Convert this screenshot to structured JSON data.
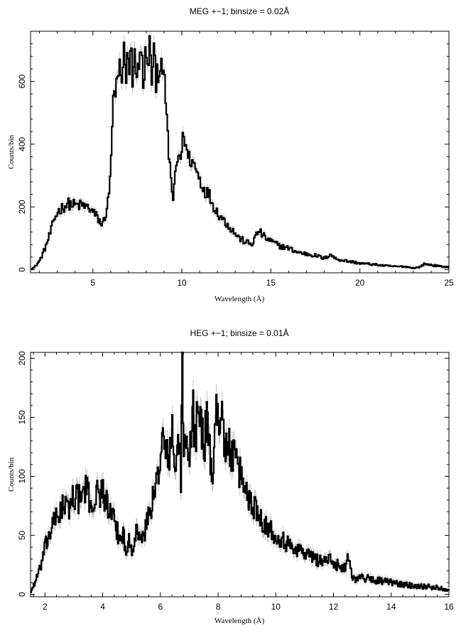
{
  "chart_data": [
    {
      "type": "line",
      "title": "MEG +−1; binsize = 0.02Å",
      "xlabel": "Wavelength (Å)",
      "ylabel": "Counts/bin",
      "xlim": [
        1.5,
        25
      ],
      "ylim": [
        -10,
        760
      ],
      "xticks": [
        5,
        10,
        15,
        20,
        25
      ],
      "yticks": [
        0,
        200,
        400,
        600
      ],
      "grid": false,
      "series": [
        {
          "x": [
            1.5,
            1.7,
            2.0,
            2.3,
            2.6,
            2.8,
            3.0,
            3.3,
            3.6,
            4.0,
            4.4,
            4.8,
            5.1,
            5.3,
            5.5,
            5.7,
            5.9,
            6.0,
            6.1,
            6.3,
            6.5,
            6.6,
            6.7,
            6.8,
            6.9,
            7.0,
            7.1,
            7.2,
            7.3,
            7.4,
            7.5,
            7.6,
            7.7,
            7.8,
            7.9,
            8.0,
            8.1,
            8.2,
            8.3,
            8.4,
            8.5,
            8.6,
            8.7,
            8.8,
            8.9,
            9.0,
            9.1,
            9.2,
            9.3,
            9.4,
            9.5,
            9.6,
            9.7,
            9.8,
            9.9,
            10.0,
            10.1,
            10.2,
            10.3,
            10.5,
            10.7,
            10.9,
            11.1,
            11.3,
            11.5,
            11.7,
            12.0,
            12.3,
            12.6,
            12.9,
            13.2,
            13.5,
            13.7,
            13.9,
            14.1,
            14.3,
            14.5,
            14.7,
            15.0,
            15.5,
            16.0,
            16.5,
            17.0,
            17.5,
            18.0,
            18.3,
            18.6,
            19.0,
            19.5,
            20.0,
            20.5,
            21.0,
            21.5,
            22.0,
            22.5,
            23.0,
            23.3,
            23.6,
            24.0,
            24.5,
            25.0
          ],
          "values": [
            2,
            8,
            30,
            70,
            120,
            160,
            185,
            200,
            210,
            205,
            205,
            195,
            175,
            160,
            140,
            180,
            240,
            380,
            520,
            580,
            640,
            560,
            720,
            600,
            680,
            650,
            700,
            620,
            700,
            580,
            690,
            640,
            720,
            560,
            700,
            630,
            680,
            720,
            590,
            690,
            600,
            650,
            630,
            700,
            560,
            640,
            480,
            400,
            330,
            260,
            220,
            300,
            340,
            370,
            360,
            400,
            440,
            390,
            360,
            350,
            330,
            300,
            270,
            250,
            240,
            210,
            180,
            160,
            140,
            120,
            100,
            90,
            85,
            80,
            105,
            125,
            110,
            100,
            90,
            75,
            68,
            55,
            50,
            45,
            35,
            50,
            35,
            30,
            25,
            20,
            18,
            15,
            12,
            10,
            10,
            5,
            8,
            18,
            15,
            10,
            8
          ]
        }
      ]
    },
    {
      "type": "line",
      "title": "HEG +−1; binsize = 0.01Å",
      "xlabel": "Wavelength (Å)",
      "ylabel": "Counts/bin",
      "xlim": [
        1.5,
        16
      ],
      "ylim": [
        -2,
        205
      ],
      "xticks": [
        2,
        4,
        6,
        8,
        10,
        12,
        14,
        16
      ],
      "yticks": [
        0,
        50,
        100,
        150,
        200
      ],
      "grid": false,
      "series": [
        {
          "x": [
            1.5,
            1.6,
            1.8,
            2.0,
            2.2,
            2.4,
            2.6,
            2.8,
            3.0,
            3.2,
            3.4,
            3.6,
            3.8,
            4.0,
            4.2,
            4.4,
            4.6,
            4.7,
            4.8,
            4.9,
            5.0,
            5.2,
            5.4,
            5.5,
            5.6,
            5.8,
            5.9,
            6.0,
            6.1,
            6.2,
            6.3,
            6.4,
            6.5,
            6.6,
            6.7,
            6.75,
            6.8,
            6.9,
            7.0,
            7.1,
            7.2,
            7.3,
            7.4,
            7.5,
            7.6,
            7.7,
            7.8,
            7.9,
            8.0,
            8.1,
            8.2,
            8.3,
            8.4,
            8.6,
            8.8,
            9.0,
            9.2,
            9.4,
            9.6,
            9.8,
            10.0,
            10.2,
            10.4,
            10.6,
            10.8,
            11.0,
            11.2,
            11.4,
            11.6,
            11.8,
            12.0,
            12.2,
            12.4,
            12.5,
            12.6,
            12.7,
            12.8,
            13.0,
            13.5,
            14.0,
            14.5,
            15.0,
            15.5,
            16.0
          ],
          "values": [
            2,
            8,
            20,
            40,
            55,
            65,
            75,
            72,
            85,
            80,
            90,
            75,
            85,
            88,
            70,
            60,
            45,
            55,
            30,
            50,
            40,
            55,
            45,
            60,
            70,
            85,
            100,
            125,
            130,
            115,
            120,
            135,
            100,
            140,
            95,
            200,
            130,
            120,
            110,
            160,
            130,
            170,
            140,
            125,
            150,
            120,
            100,
            155,
            140,
            170,
            130,
            120,
            125,
            110,
            100,
            85,
            75,
            70,
            60,
            55,
            50,
            48,
            42,
            40,
            38,
            35,
            32,
            30,
            28,
            30,
            26,
            25,
            22,
            35,
            20,
            12,
            15,
            14,
            12,
            10,
            8,
            7,
            6,
            4
          ]
        }
      ]
    }
  ]
}
